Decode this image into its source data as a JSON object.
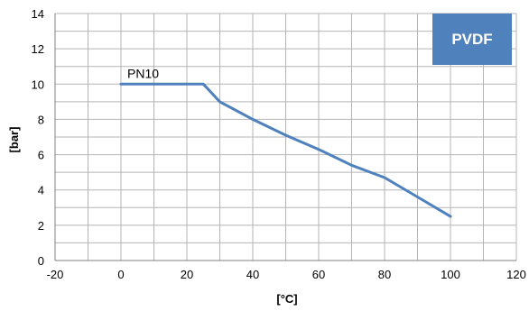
{
  "chart_data": {
    "type": "line",
    "xlabel": "[°C]",
    "ylabel": "[bar]",
    "xlim": [
      -20,
      120
    ],
    "ylim": [
      0,
      14
    ],
    "x_ticks": [
      -20,
      0,
      20,
      40,
      60,
      80,
      100,
      120
    ],
    "y_ticks": [
      0,
      2,
      4,
      6,
      8,
      10,
      12,
      14
    ],
    "x_minor_step": 10,
    "y_minor_step": 1,
    "grid": true,
    "series": [
      {
        "name": "PN10",
        "color": "#4F81BD",
        "points": [
          {
            "x": 0,
            "y": 10
          },
          {
            "x": 25,
            "y": 10
          },
          {
            "x": 30,
            "y": 9
          },
          {
            "x": 40,
            "y": 8
          },
          {
            "x": 50,
            "y": 7.1
          },
          {
            "x": 60,
            "y": 6.3
          },
          {
            "x": 70,
            "y": 5.4
          },
          {
            "x": 80,
            "y": 4.7
          },
          {
            "x": 90,
            "y": 3.6
          },
          {
            "x": 100,
            "y": 2.5
          }
        ]
      }
    ],
    "badge": {
      "text": "PVDF",
      "color": "#4F81BD",
      "position": "top-right"
    }
  }
}
